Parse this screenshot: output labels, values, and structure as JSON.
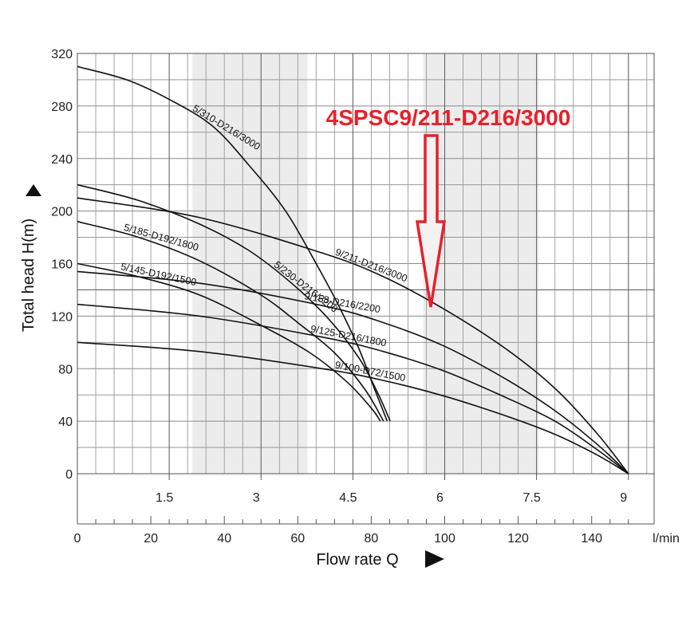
{
  "chart_data": {
    "type": "line",
    "title": "4SPSC9/211-D216/3000",
    "xlabel": "Flow rate Q",
    "ylabel": "Total head H(m)",
    "x_unit_secondary": "l/min",
    "xlim": [
      0,
      9.42
    ],
    "ylim": [
      0,
      320
    ],
    "x_ticks_top": [
      "1.5",
      "3",
      "4.5",
      "6",
      "7.5",
      "9"
    ],
    "x_ticks_top_values": [
      1.5,
      3,
      4.5,
      6,
      7.5,
      9
    ],
    "x_ticks_bottom": [
      "0",
      "20",
      "40",
      "60",
      "80",
      "100",
      "120",
      "140",
      "l/min"
    ],
    "x_ticks_bottom_values": [
      0,
      20,
      40,
      60,
      80,
      100,
      120,
      140
    ],
    "y_ticks": [
      "0",
      "40",
      "80",
      "120",
      "160",
      "200",
      "240",
      "280",
      "320"
    ],
    "y_ticks_values": [
      0,
      40,
      80,
      120,
      160,
      200,
      240,
      280,
      320
    ],
    "grid": true,
    "shaded_bands": [
      [
        1.88,
        3.76
      ],
      [
        5.65,
        7.53
      ]
    ],
    "highlight_series": "9/211-D216/3000",
    "series": [
      {
        "name": "5/310-D216/3000",
        "x": [
          0,
          0.8,
          1.5,
          2.2,
          2.8,
          3.4,
          3.9,
          4.3,
          4.6,
          4.85,
          5.06
        ],
        "y": [
          310,
          300,
          285,
          265,
          235,
          200,
          160,
          125,
          95,
          65,
          40
        ]
      },
      {
        "name": "5/230-D216/2200",
        "x": [
          0,
          1,
          2,
          2.8,
          3.5,
          4.1,
          4.6,
          4.9,
          5.11
        ],
        "y": [
          220,
          208,
          190,
          170,
          145,
          118,
          88,
          62,
          40
        ]
      },
      {
        "name": "5/185-D192/1800",
        "x": [
          0,
          1,
          2,
          3,
          3.6,
          4.2,
          4.7,
          5.0
        ],
        "y": [
          192,
          180,
          162,
          136,
          115,
          92,
          64,
          40
        ]
      },
      {
        "name": "5/145-D192/1500",
        "x": [
          0,
          1,
          2,
          3,
          3.8,
          4.4,
          4.8,
          4.95
        ],
        "y": [
          160,
          150,
          136,
          113,
          92,
          70,
          50,
          40
        ]
      },
      {
        "name": "9/211-D216/3000",
        "x": [
          0,
          2,
          4,
          5,
          6,
          7,
          7.8,
          8.5,
          9.0
        ],
        "y": [
          210,
          195,
          168,
          150,
          125,
          95,
          65,
          30,
          0
        ]
      },
      {
        "name": "9/158-D216/2200",
        "x": [
          0,
          2,
          4,
          5,
          6,
          7,
          7.8,
          8.5,
          9.0
        ],
        "y": [
          154,
          145,
          128,
          115,
          97,
          72,
          48,
          22,
          0
        ]
      },
      {
        "name": "9/125-D216/1800",
        "x": [
          0,
          2,
          4,
          5,
          6,
          7,
          7.8,
          8.5,
          9.0
        ],
        "y": [
          129,
          120,
          104,
          93,
          78,
          58,
          40,
          18,
          0
        ]
      },
      {
        "name": "9/100-D72/1500",
        "x": [
          0,
          2,
          4,
          5,
          6,
          7,
          7.8,
          8.5,
          9.0
        ],
        "y": [
          100,
          93,
          80,
          71,
          59,
          44,
          30,
          14,
          0
        ]
      }
    ]
  }
}
